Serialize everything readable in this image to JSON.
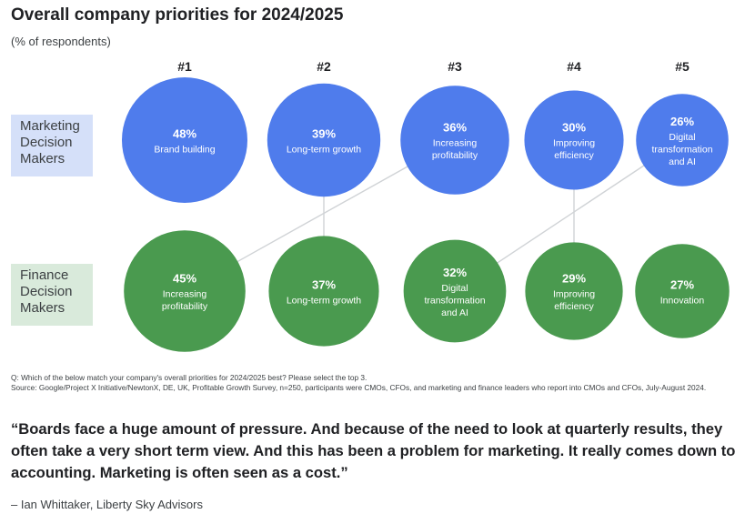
{
  "title": "Overall company priorities for 2024/2025",
  "subtitle": "(% of respondents)",
  "chart_data": {
    "type": "bubble-ranking",
    "ranks": [
      "#1",
      "#2",
      "#3",
      "#4",
      "#5"
    ],
    "rows": [
      {
        "name": "Marketing Decision Makers",
        "label_lines": [
          "Marketing",
          "Decision",
          "Makers"
        ],
        "color": "#4f7cec",
        "label_bg": "#d5e0f9",
        "items": [
          {
            "value": 48,
            "pct": "48%",
            "label": [
              "Brand building"
            ]
          },
          {
            "value": 39,
            "pct": "39%",
            "label": [
              "Long-term growth"
            ]
          },
          {
            "value": 36,
            "pct": "36%",
            "label": [
              "Increasing",
              "profitability"
            ]
          },
          {
            "value": 30,
            "pct": "30%",
            "label": [
              "Improving",
              "efficiency"
            ]
          },
          {
            "value": 26,
            "pct": "26%",
            "label": [
              "Digital",
              "transformation",
              "and AI"
            ]
          }
        ]
      },
      {
        "name": "Finance Decision Makers",
        "label_lines": [
          "Finance",
          "Decision",
          "Makers"
        ],
        "color": "#4a9a4f",
        "label_bg": "#d9eadb",
        "items": [
          {
            "value": 45,
            "pct": "45%",
            "label": [
              "Increasing",
              "profitability"
            ]
          },
          {
            "value": 37,
            "pct": "37%",
            "label": [
              "Long-term growth"
            ]
          },
          {
            "value": 32,
            "pct": "32%",
            "label": [
              "Digital",
              "transformation",
              "and AI"
            ]
          },
          {
            "value": 29,
            "pct": "29%",
            "label": [
              "Improving",
              "efficiency"
            ]
          },
          {
            "value": 27,
            "pct": "27%",
            "label": [
              "Innovation"
            ]
          }
        ]
      }
    ],
    "connections": [
      {
        "marketing_rank": 2,
        "finance_rank": 2
      },
      {
        "marketing_rank": 3,
        "finance_rank": 1
      },
      {
        "marketing_rank": 4,
        "finance_rank": 4
      },
      {
        "marketing_rank": 5,
        "finance_rank": 3
      }
    ]
  },
  "footnote": {
    "question": "Q: Which of the below match your company's overall priorities for 2024/2025 best? Please select the top 3.",
    "source": "Source: Google/Project X Initiative/NewtonX, DE, UK, Profitable Growth Survey, n=250, participants were CMOs, CFOs, and marketing and  finance leaders who report into CMOs and CFOs, July-August  2024."
  },
  "quote": "“Boards face a huge amount of pressure. And because of the need to look at quarterly results, they often take a very short term view. And this has been a problem for marketing. It really comes down to accounting. Marketing is often seen as a cost.”",
  "attribution": "– Ian Whittaker, Liberty Sky Advisors"
}
